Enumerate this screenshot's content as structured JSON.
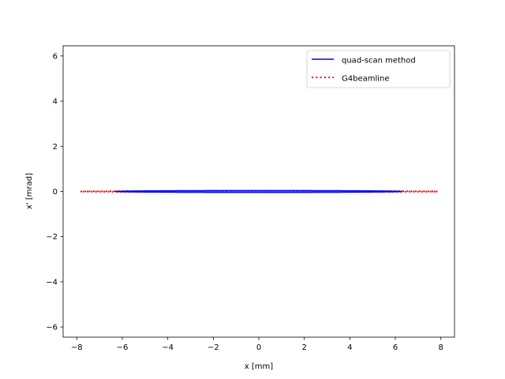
{
  "chart_data": {
    "type": "line",
    "title": "",
    "xlabel": "x [mm]",
    "ylabel": "x' [mrad]",
    "xlim": [
      -8.6,
      8.6
    ],
    "ylim": [
      -6.45,
      6.45
    ],
    "xticks": [
      -8,
      -6,
      -4,
      -2,
      0,
      2,
      4,
      6,
      8
    ],
    "xtick_labels": [
      "−8",
      "−6",
      "−4",
      "−2",
      "0",
      "2",
      "4",
      "6",
      "8"
    ],
    "yticks": [
      -6,
      -4,
      -2,
      0,
      2,
      4,
      6
    ],
    "ytick_labels": [
      "−6",
      "−4",
      "−2",
      "0",
      "2",
      "4",
      "6"
    ],
    "grid": false,
    "legend_position": "top-right",
    "series": [
      {
        "name": "quad-scan method",
        "style": "solid",
        "color": "#0000ff",
        "shape": "ellipse",
        "x_semi_axis": 6.3,
        "xp_semi_axis": 0.04,
        "center": [
          0,
          0
        ]
      },
      {
        "name": "G4beamline",
        "style": "dotted",
        "color": "#ff0000",
        "shape": "ellipse",
        "x_semi_axis": 7.85,
        "xp_semi_axis": 0.02,
        "center": [
          0,
          0
        ]
      }
    ]
  }
}
